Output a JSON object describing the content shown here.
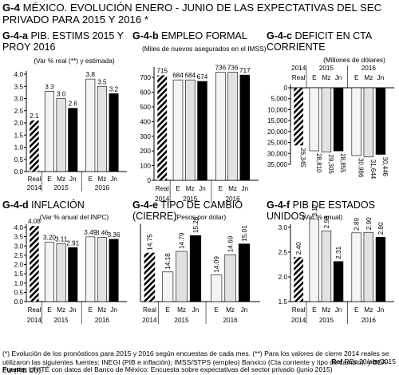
{
  "title": {
    "code": "G-4",
    "text": "MÉXICO. EVOLUCIÓN ENERO - JUNIO DE LAS EXPECTATIVAS DEL SEC PRIVADO PARA 2015 Y 2016 *"
  },
  "chart_data": [
    {
      "id": "a",
      "code": "G-4-a",
      "title": "PIB. ESTIMS 2015 Y PROY 2016",
      "subtitle": "(Var % real (**) y estimada)",
      "type": "bar",
      "categories": [
        "Real",
        "E",
        "Mz",
        "Jn",
        "E",
        "Mz",
        "Jn"
      ],
      "groups": [
        "2014",
        "2015",
        "2016"
      ],
      "values": [
        2.1,
        3.3,
        3.0,
        2.6,
        3.8,
        3.5,
        3.2
      ],
      "labels": [
        "2.1",
        "3.3",
        "3.0",
        "2.6",
        "3.8",
        "3.5",
        "3.2"
      ],
      "ylim": [
        0,
        4.0
      ],
      "yticks": [
        "0.0",
        "0.5",
        "1.0",
        "1.5",
        "2.0",
        "2.5",
        "3.0",
        "3.5",
        "4.0"
      ],
      "ytick_values": [
        0,
        0.5,
        1.0,
        1.5,
        2.0,
        2.5,
        3.0,
        3.5,
        4.0
      ],
      "inverted": false
    },
    {
      "id": "b",
      "code": "G-4-b",
      "title": "EMPLEO FORMAL",
      "subtitle": "(Miles de nuevos asegurados en el IMSS)",
      "type": "bar",
      "categories": [
        "Real",
        "E",
        "Mz",
        "Jn",
        "E",
        "Mz",
        "Jn"
      ],
      "groups": [
        "2014",
        "2015",
        "2016"
      ],
      "values": [
        715,
        684,
        684,
        674,
        736,
        736,
        717
      ],
      "labels": [
        "715",
        "684",
        "684",
        "674",
        "736",
        "736",
        "717"
      ],
      "ylim": [
        0,
        750
      ],
      "yticks": [
        "0",
        "100",
        "200",
        "300",
        "400",
        "500",
        "600",
        "700"
      ],
      "ytick_values": [
        0,
        100,
        200,
        300,
        400,
        500,
        600,
        700
      ],
      "inverted": false
    },
    {
      "id": "c",
      "code": "G-4-c",
      "title": "DEFICIT EN CTA CORRIENTE",
      "subtitle": "(Millones de dólares)",
      "type": "bar",
      "categories": [
        "Real",
        "E",
        "Mz",
        "Jn",
        "E",
        "Mz",
        "Jn"
      ],
      "groups": [
        "2014",
        "2015",
        "2016"
      ],
      "values": [
        26345,
        28810,
        29305,
        28855,
        30986,
        31644,
        30446
      ],
      "labels": [
        "26,345",
        "28,810",
        "29,305",
        "28,855",
        "30,986",
        "31,644",
        "30,446"
      ],
      "ylim": [
        0,
        35000
      ],
      "yticks": [
        "0",
        "5,000",
        "10,000",
        "15,000",
        "20,000",
        "25,000",
        "30,000",
        "35,000"
      ],
      "ytick_values": [
        0,
        5000,
        10000,
        15000,
        20000,
        25000,
        30000,
        35000
      ],
      "inverted": true
    },
    {
      "id": "d",
      "code": "G-4-d",
      "title": "INFLACIÓN",
      "subtitle": "(Var % anual del INPC)",
      "type": "bar",
      "categories": [
        "Real",
        "E",
        "Mz",
        "Jn",
        "E",
        "Mz",
        "Jn"
      ],
      "groups": [
        "2014",
        "2015",
        "2016"
      ],
      "values": [
        4.08,
        3.2,
        3.11,
        2.91,
        3.49,
        3.46,
        3.36
      ],
      "labels": [
        "4.08",
        "3.20",
        "3.11",
        "2.91",
        "3.49",
        "3.46",
        "3.36"
      ],
      "ylim": [
        0,
        4.0
      ],
      "yticks": [
        "0.0",
        "0.5",
        "1.0",
        "1.5",
        "2.0",
        "2.5",
        "3.0",
        "3.5",
        "4.0"
      ],
      "ytick_values": [
        0,
        0.5,
        1.0,
        1.5,
        2.0,
        2.5,
        3.0,
        3.5,
        4.0
      ],
      "inverted": false
    },
    {
      "id": "e",
      "code": "G-4-e",
      "title": "TIPO DE CAMBIO (CIERRE)",
      "subtitle": "(Pesos por dólar)",
      "type": "bar",
      "categories": [
        "Real",
        "E",
        "Mz",
        "Jn",
        "E",
        "Mz",
        "Jn"
      ],
      "groups": [
        "2014",
        "2015",
        "2016"
      ],
      "values": [
        14.75,
        14.18,
        14.79,
        15.26,
        14.09,
        14.69,
        15.01
      ],
      "labels": [
        "14.75",
        "14.18",
        "14.79",
        "15.26",
        "14.09",
        "14.69",
        "15.01"
      ],
      "ylim": [
        13.3,
        15.5
      ],
      "yticks": [],
      "ytick_values": [],
      "inverted": false
    },
    {
      "id": "f",
      "code": "G-4-f",
      "title": "PIB DE ESTADOS UNIDOS",
      "subtitle": "(Var % anual)",
      "type": "bar",
      "categories": [
        "Real",
        "E",
        "Mz",
        "Jn",
        "E",
        "Mz",
        "Jn"
      ],
      "groups": [
        "2014",
        "2015",
        "2016"
      ],
      "values": [
        2.4,
        3.17,
        2.93,
        2.31,
        2.89,
        2.9,
        2.8
      ],
      "labels": [
        "2.40",
        "3.17",
        "2.93",
        "2.31",
        "2.89",
        "2.90",
        "2.80"
      ],
      "ylim": [
        1.5,
        3.0
      ],
      "yticks": [
        "1.5",
        "2.0",
        "2.5",
        "3.0"
      ],
      "ytick_values": [
        1.5,
        2.0,
        2.5,
        3.0
      ],
      "inverted": false
    }
  ],
  "colors": {
    "e": "#f4f4f4",
    "mz": "#e2e2e2",
    "jn": "#000000",
    "hatch": "#000000"
  },
  "footnote": {
    "line1": "(*) Evolución de los pronósticos para 2015 y 2016 según encuestas de cada mes.  (**) Para los valores de cierre 2014 reales se utilizaron las siguientes fuentes: INEGI (PIB e inflación); IMSS/STPS (empleo) Banxico (Cta corriente y tipo de cambio); y BEA-EU (PIB EU).",
    "ref_label": "Ref",
    "ref_text": "REc  20/abr/2015",
    "source_label": "Fuente:",
    "source_text": "UNITÉ con datos del Banco de México: Encuesta sobre expectativas del sector privado (junio 2015)"
  }
}
